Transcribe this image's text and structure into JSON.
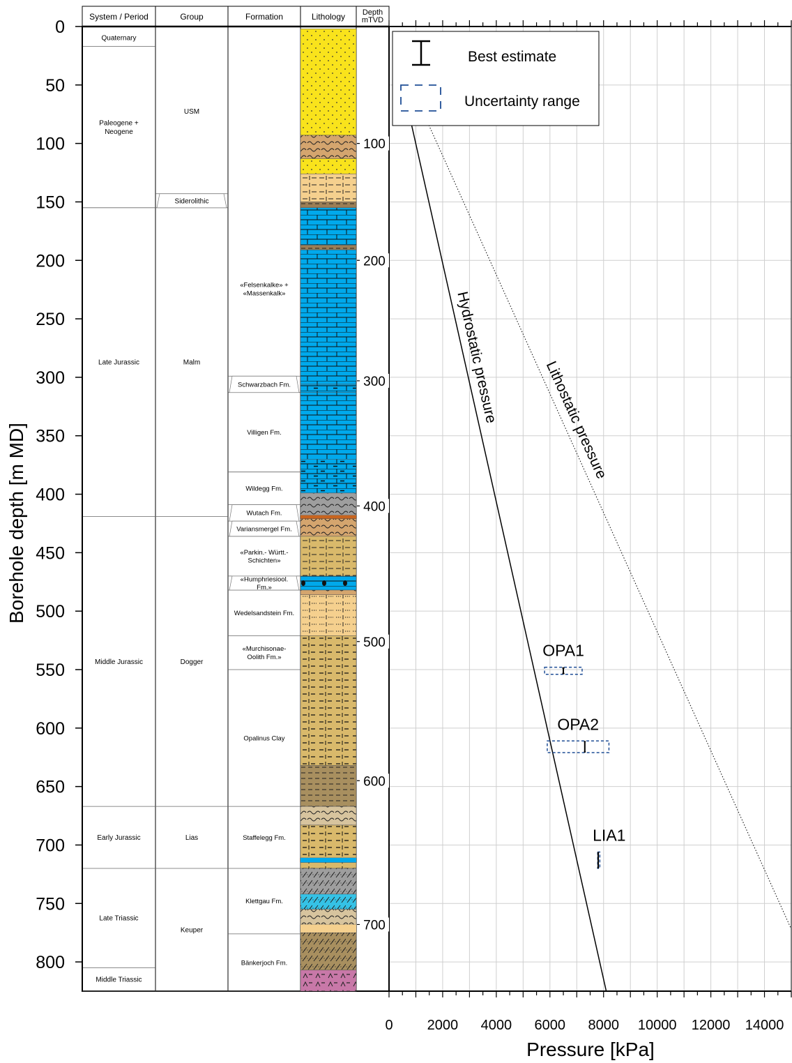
{
  "chart_data": {
    "type": "line",
    "ylabel": "Borehole depth [m MD]",
    "xlabel": "Pressure [kPa]",
    "y_ticks": [
      0,
      50,
      100,
      150,
      200,
      250,
      300,
      350,
      400,
      450,
      500,
      550,
      600,
      650,
      700,
      750,
      800
    ],
    "ylim": [
      0,
      825
    ],
    "xlim": [
      0,
      15000
    ],
    "x_ticks": [
      0,
      2000,
      4000,
      6000,
      8000,
      10000,
      12000,
      14000
    ],
    "tvd_label": "Depth mTVD",
    "tvd_ticks": [
      {
        "label": "100",
        "md": 100
      },
      {
        "label": "200",
        "md": 200
      },
      {
        "label": "300",
        "md": 303
      },
      {
        "label": "400",
        "md": 410
      },
      {
        "label": "500",
        "md": 526
      },
      {
        "label": "600",
        "md": 645
      },
      {
        "label": "700",
        "md": 768
      }
    ],
    "columns": [
      "System / Period",
      "Group",
      "Formation",
      "Lithology"
    ],
    "systems": [
      {
        "label": "Quaternary",
        "top": 2,
        "bottom": 17
      },
      {
        "label": "Paleogene + Neogene",
        "top": 17,
        "bottom": 155
      },
      {
        "label": "Late Jurassic",
        "top": 155,
        "bottom": 419
      },
      {
        "label": "Middle Jurassic",
        "top": 419,
        "bottom": 667
      },
      {
        "label": "Early Jurassic",
        "top": 667,
        "bottom": 720
      },
      {
        "label": "Late Triassic",
        "top": 720,
        "bottom": 805
      },
      {
        "label": "Middle Triassic",
        "top": 805,
        "bottom": 825
      }
    ],
    "groups": [
      {
        "label": "USM",
        "top": 2,
        "bottom": 143
      },
      {
        "label": "Siderolithic",
        "top": 143,
        "bottom": 155
      },
      {
        "label": "Malm",
        "top": 155,
        "bottom": 419
      },
      {
        "label": "Dogger",
        "top": 419,
        "bottom": 667
      },
      {
        "label": "Lias",
        "top": 667,
        "bottom": 720
      },
      {
        "label": "Keuper",
        "top": 720,
        "bottom": 825
      }
    ],
    "formations": [
      {
        "label": "«Felsenkalke» + «Massenkalk»",
        "top": 150,
        "bottom": 299
      },
      {
        "label": "Schwarzbach Fm.",
        "top": 299,
        "bottom": 313
      },
      {
        "label": "Villigen Fm.",
        "top": 313,
        "bottom": 381
      },
      {
        "label": "Wildegg Fm.",
        "top": 381,
        "bottom": 409
      },
      {
        "label": "Wutach Fm.",
        "top": 409,
        "bottom": 423
      },
      {
        "label": "Variansmergel Fm.",
        "top": 423,
        "bottom": 436
      },
      {
        "label": "«Parkin.- Württ.- Schichten»",
        "top": 436,
        "bottom": 470
      },
      {
        "label": "«Humphriesiool. Fm.»",
        "top": 470,
        "bottom": 482
      },
      {
        "label": "Wedelsandstein Fm.",
        "top": 482,
        "bottom": 521
      },
      {
        "label": "«Murchisonae- Oolith Fm.»",
        "top": 521,
        "bottom": 550
      },
      {
        "label": "Opalinus Clay",
        "top": 550,
        "bottom": 667
      },
      {
        "label": "Staffelegg Fm.",
        "top": 667,
        "bottom": 720
      },
      {
        "label": "Klettgau Fm.",
        "top": 720,
        "bottom": 776
      },
      {
        "label": "Bänkerjoch Fm.",
        "top": 776,
        "bottom": 825
      }
    ],
    "lithology": [
      {
        "top": 2,
        "bottom": 93,
        "color": "#f9e31c",
        "pattern": "sand"
      },
      {
        "top": 93,
        "bottom": 113,
        "color": "#d4a56e",
        "pattern": "marl"
      },
      {
        "top": 113,
        "bottom": 126,
        "color": "#f9e31c",
        "pattern": "sand"
      },
      {
        "top": 126,
        "bottom": 150,
        "color": "#f5d08e",
        "pattern": "silt"
      },
      {
        "top": 150,
        "bottom": 155,
        "color": "#9c7e55",
        "pattern": "clay"
      },
      {
        "top": 155,
        "bottom": 187,
        "color": "#00a9ec",
        "pattern": "lime"
      },
      {
        "top": 187,
        "bottom": 191,
        "color": "#9c7e55",
        "pattern": "clay"
      },
      {
        "top": 191,
        "bottom": 306,
        "color": "#00a9ec",
        "pattern": "lime"
      },
      {
        "top": 306,
        "bottom": 313,
        "color": "#00a9ec",
        "pattern": "argillime"
      },
      {
        "top": 313,
        "bottom": 370,
        "color": "#00a9ec",
        "pattern": "lime"
      },
      {
        "top": 370,
        "bottom": 399,
        "color": "#00a9ec",
        "pattern": "argillime"
      },
      {
        "top": 399,
        "bottom": 418,
        "color": "#9e9e9e",
        "pattern": "marl"
      },
      {
        "top": 418,
        "bottom": 421,
        "color": "#c8641e",
        "pattern": "none"
      },
      {
        "top": 421,
        "bottom": 436,
        "color": "#d4a56e",
        "pattern": "marl"
      },
      {
        "top": 436,
        "bottom": 470,
        "color": "#d9b96b",
        "pattern": "silt"
      },
      {
        "top": 470,
        "bottom": 482,
        "color": "#00a9ec",
        "pattern": "oolite"
      },
      {
        "top": 482,
        "bottom": 486,
        "color": "#d4a56e",
        "pattern": "marl"
      },
      {
        "top": 486,
        "bottom": 521,
        "color": "#f5d08e",
        "pattern": "sandsilt"
      },
      {
        "top": 521,
        "bottom": 632,
        "color": "#d9b96b",
        "pattern": "claystone"
      },
      {
        "top": 632,
        "bottom": 667,
        "color": "#a88f5f",
        "pattern": "clay"
      },
      {
        "top": 667,
        "bottom": 683,
        "color": "#d7c49e",
        "pattern": "marl"
      },
      {
        "top": 683,
        "bottom": 711,
        "color": "#d9b96b",
        "pattern": "claystone"
      },
      {
        "top": 711,
        "bottom": 715,
        "color": "#00a9ec",
        "pattern": "none"
      },
      {
        "top": 715,
        "bottom": 720,
        "color": "#d9b96b",
        "pattern": "claystone"
      },
      {
        "top": 720,
        "bottom": 742,
        "color": "#9e9e9e",
        "pattern": "dolo"
      },
      {
        "top": 742,
        "bottom": 755,
        "color": "#35c2e6",
        "pattern": "dolo"
      },
      {
        "top": 755,
        "bottom": 768,
        "color": "#d7c49e",
        "pattern": "marl"
      },
      {
        "top": 768,
        "bottom": 775,
        "color": "#f5d08e",
        "pattern": "none"
      },
      {
        "top": 775,
        "bottom": 807,
        "color": "#a88f5f",
        "pattern": "dolo"
      },
      {
        "top": 807,
        "bottom": 825,
        "color": "#c878a8",
        "pattern": "anhydrite"
      }
    ],
    "lines": [
      {
        "name": "Hydrostatic pressure",
        "style": "solid",
        "points": [
          [
            800,
            80
          ],
          [
            8100,
            825
          ]
        ]
      },
      {
        "name": "Lithostatic pressure",
        "style": "dotted",
        "points": [
          [
            1400,
            80
          ],
          [
            15000,
            772
          ]
        ]
      }
    ],
    "measurements": [
      {
        "name": "OPA1",
        "best": 6500,
        "best_low": 6460,
        "best_high": 6540,
        "range": [
          5800,
          7200
        ],
        "depth_top": 548,
        "depth_bottom": 554
      },
      {
        "name": "OPA2",
        "best": 7300,
        "best_low": 7270,
        "best_high": 7330,
        "range": [
          5900,
          8200
        ],
        "depth_top": 611,
        "depth_bottom": 621
      },
      {
        "name": "LIA1",
        "best": 7800,
        "best_low": 7770,
        "best_high": 7830,
        "range": [
          7780,
          7860
        ],
        "depth_top": 706,
        "depth_bottom": 720
      }
    ],
    "legend": {
      "position": "top-left",
      "best_label": "Best estimate",
      "range_label": "Uncertainty range"
    },
    "grid": true,
    "colors": {
      "range_box": "#1f4e96",
      "best_marker": "#000000",
      "grid": "#cfcfcf"
    }
  }
}
